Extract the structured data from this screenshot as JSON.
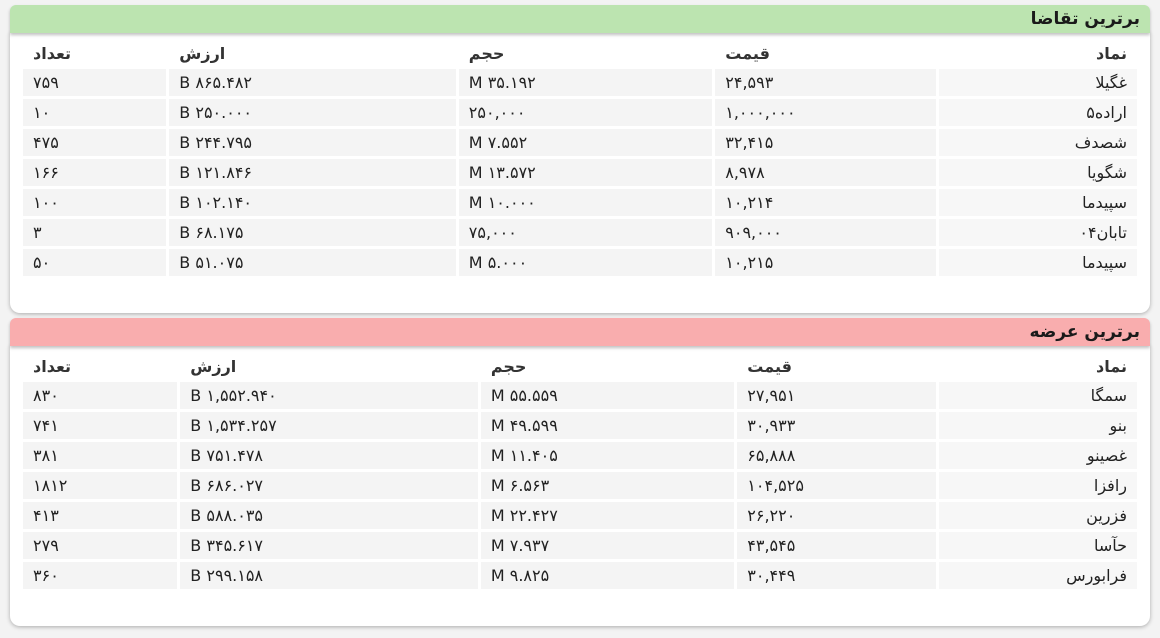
{
  "demand": {
    "title": "برترین تقاضا",
    "headers": {
      "symbol": "نماد",
      "price": "قیمت",
      "volume": "حجم",
      "value": "ارزش",
      "count": "تعداد"
    },
    "rows": [
      {
        "symbol": "غگیلا",
        "price": "۲۴,۵۹۳",
        "volume": "۳۵.۱۹۲ M",
        "value": "۸۶۵.۴۸۲ B",
        "count": "۷۵۹"
      },
      {
        "symbol": "اراده۵",
        "price": "۱,۰۰۰,۰۰۰",
        "volume": "۲۵۰,۰۰۰",
        "value": "۲۵۰.۰۰۰ B",
        "count": "۱۰"
      },
      {
        "symbol": "شصدف",
        "price": "۳۲,۴۱۵",
        "volume": "۷.۵۵۲ M",
        "value": "۲۴۴.۷۹۵ B",
        "count": "۴۷۵"
      },
      {
        "symbol": "شگویا",
        "price": "۸,۹۷۸",
        "volume": "۱۳.۵۷۲ M",
        "value": "۱۲۱.۸۴۶ B",
        "count": "۱۶۶"
      },
      {
        "symbol": "سپیدما",
        "price": "۱۰,۲۱۴",
        "volume": "۱۰.۰۰۰ M",
        "value": "۱۰۲.۱۴۰ B",
        "count": "۱۰۰"
      },
      {
        "symbol": "تابان۰۴",
        "price": "۹۰۹,۰۰۰",
        "volume": "۷۵,۰۰۰",
        "value": "۶۸.۱۷۵ B",
        "count": "۳"
      },
      {
        "symbol": "سپیدما",
        "price": "۱۰,۲۱۵",
        "volume": "۵.۰۰۰ M",
        "value": "۵۱.۰۷۵ B",
        "count": "۵۰"
      }
    ]
  },
  "supply": {
    "title": "برترین عرضه",
    "headers": {
      "symbol": "نماد",
      "price": "قیمت",
      "volume": "حجم",
      "value": "ارزش",
      "count": "تعداد"
    },
    "rows": [
      {
        "symbol": "سمگا",
        "price": "۲۷,۹۵۱",
        "volume": "۵۵.۵۵۹ M",
        "value": "۱,۵۵۲.۹۴۰ B",
        "count": "۸۳۰"
      },
      {
        "symbol": "بنو",
        "price": "۳۰,۹۳۳",
        "volume": "۴۹.۵۹۹ M",
        "value": "۱,۵۳۴.۲۵۷ B",
        "count": "۷۴۱"
      },
      {
        "symbol": "غصینو",
        "price": "۶۵,۸۸۸",
        "volume": "۱۱.۴۰۵ M",
        "value": "۷۵۱.۴۷۸ B",
        "count": "۳۸۱"
      },
      {
        "symbol": "رافزا",
        "price": "۱۰۴,۵۲۵",
        "volume": "۶.۵۶۳ M",
        "value": "۶۸۶.۰۲۷ B",
        "count": "۱۸۱۲"
      },
      {
        "symbol": "فزرین",
        "price": "۲۶,۲۲۰",
        "volume": "۲۲.۴۲۷ M",
        "value": "۵۸۸.۰۳۵ B",
        "count": "۴۱۳"
      },
      {
        "symbol": "حآسا",
        "price": "۴۳,۵۴۵",
        "volume": "۷.۹۳۷ M",
        "value": "۳۴۵.۶۱۷ B",
        "count": "۲۷۹"
      },
      {
        "symbol": "فرابورس",
        "price": "۳۰,۴۴۹",
        "volume": "۹.۸۲۵ M",
        "value": "۲۹۹.۱۵۸ B",
        "count": "۳۶۰"
      }
    ]
  },
  "colors": {
    "demand_header": "#bce4b0",
    "supply_header": "#f9adae"
  }
}
